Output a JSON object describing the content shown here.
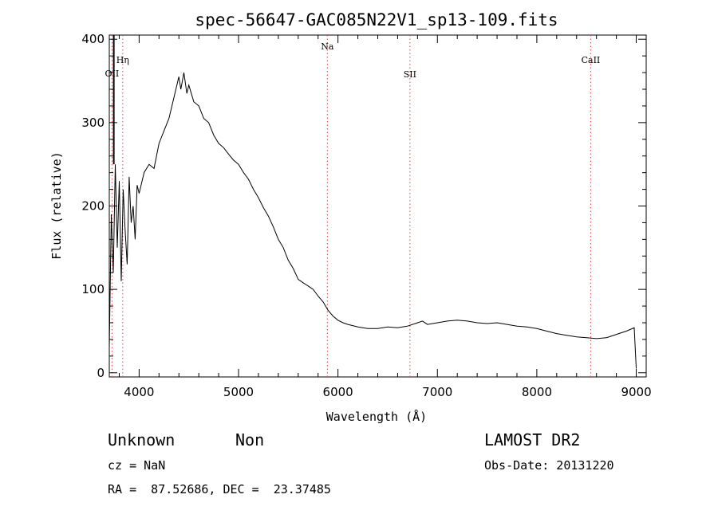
{
  "chart_data": {
    "type": "line",
    "title": "spec-56647-GAC085N22V1_sp13-109.fits",
    "xlabel": "Wavelength (Å)",
    "ylabel": "Flux (relative)",
    "xlim": [
      3700,
      9100
    ],
    "ylim": [
      -5,
      405
    ],
    "xticks": [
      4000,
      5000,
      6000,
      7000,
      8000,
      9000
    ],
    "yticks": [
      0,
      100,
      200,
      300,
      400
    ],
    "series": [
      {
        "x": [
          3700,
          3720,
          3740,
          3760,
          3780,
          3800,
          3820,
          3840,
          3860,
          3880,
          3900,
          3920,
          3940,
          3960,
          3980,
          4000,
          4050,
          4100,
          4150,
          4200,
          4250,
          4300,
          4350,
          4400,
          4420,
          4450,
          4480,
          4500,
          4550,
          4600,
          4650,
          4700,
          4750,
          4800,
          4850,
          4900,
          4950,
          5000,
          5050,
          5100,
          5150,
          5200,
          5250,
          5300,
          5350,
          5400,
          5450,
          5500,
          5550,
          5600,
          5650,
          5700,
          5750,
          5800,
          5850,
          5900,
          5950,
          6000,
          6050,
          6100,
          6200,
          6300,
          6400,
          6500,
          6600,
          6700,
          6800,
          6850,
          6900,
          7000,
          7100,
          7200,
          7300,
          7400,
          7500,
          7600,
          7700,
          7800,
          7900,
          8000,
          8100,
          8200,
          8300,
          8400,
          8500,
          8600,
          8700,
          8800,
          8900,
          8980,
          9000
        ],
        "values": [
          30,
          190,
          120,
          250,
          150,
          230,
          110,
          220,
          170,
          130,
          235,
          180,
          200,
          160,
          225,
          215,
          240,
          250,
          245,
          275,
          290,
          305,
          330,
          355,
          340,
          360,
          335,
          345,
          325,
          320,
          305,
          300,
          285,
          275,
          270,
          262,
          255,
          250,
          240,
          232,
          220,
          210,
          198,
          188,
          175,
          160,
          150,
          135,
          125,
          112,
          108,
          104,
          100,
          92,
          85,
          75,
          68,
          63,
          60,
          58,
          55,
          53,
          53,
          55,
          54,
          56,
          60,
          62,
          58,
          60,
          62,
          63,
          62,
          60,
          59,
          60,
          58,
          56,
          55,
          53,
          50,
          47,
          45,
          43,
          42,
          41,
          42,
          46,
          50,
          54,
          5
        ]
      }
    ],
    "lines": [
      {
        "label": "OII",
        "x": 3727
      },
      {
        "label": "Hη",
        "x": 3835
      },
      {
        "label": "Na",
        "x": 5893
      },
      {
        "label": "SII",
        "x": 6724
      },
      {
        "label": "CaII",
        "x": 8542
      }
    ]
  },
  "footer": {
    "class_label": "Unknown",
    "subclass_label": "Non",
    "survey": "LAMOST DR2",
    "cz": "cz = NaN",
    "obs_date": "Obs-Date: 20131220",
    "coords": "RA =  87.52686, DEC =  23.37485"
  }
}
